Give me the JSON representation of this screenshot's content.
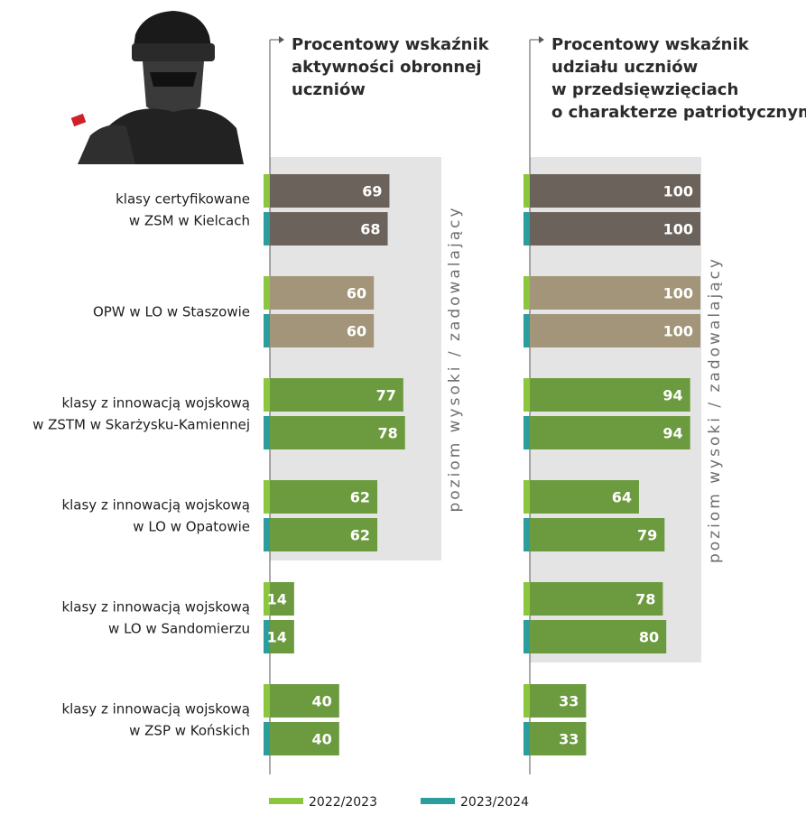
{
  "chart_data": {
    "type": "bar",
    "orientation": "horizontal",
    "categories": [
      "klasy certyfikowane\nw ZSM w Kielcach",
      "OPW w LO w Staszowie",
      "klasy z innowacją wojskową\nw ZSTM w Skarżysku-Kamiennej",
      "klasy z innowacją wojskową\nw LO w Opatowie",
      "klasy z innowacją wojskową\nw LO w Sandomierzu",
      "klasy z innowacją wojskową\nw ZSP w Końskich"
    ],
    "series_names": [
      "2022/2023",
      "2023/2024"
    ],
    "series_colors": [
      "#8cc63f",
      "#2a9d9c"
    ],
    "category_colors": [
      "#6b635b",
      "#a3957a",
      "#6c9a3f",
      "#6c9a3f",
      "#6c9a3f",
      "#6c9a3f"
    ],
    "panels": [
      {
        "title": "Procentowy wskaźnik\naktywności obronnej\nuczniów",
        "xlim": [
          0,
          100
        ],
        "zone_label": "poziom wysoki / zadowalający",
        "zone_categories": 4,
        "values": [
          [
            69,
            68
          ],
          [
            60,
            60
          ],
          [
            77,
            78
          ],
          [
            62,
            62
          ],
          [
            14,
            14
          ],
          [
            40,
            40
          ]
        ]
      },
      {
        "title": "Procentowy wskaźnik\nudziału uczniów\nw przedsięwzięciach\no charakterze patriotycznym",
        "xlim": [
          0,
          100
        ],
        "zone_label": "poziom wysoki / zadowalający",
        "zone_categories": 5,
        "values": [
          [
            100,
            100
          ],
          [
            100,
            100
          ],
          [
            94,
            94
          ],
          [
            64,
            79
          ],
          [
            78,
            80
          ],
          [
            33,
            33
          ]
        ]
      }
    ],
    "legend": {
      "placement": "bottom-center",
      "entries": [
        "2022/2023",
        "2023/2024"
      ]
    }
  },
  "colors": {
    "zone_background": "#e4e4e4",
    "axis": "#555555",
    "label_text": "#1e1e1e"
  },
  "decorations": {
    "icon": "soldier-portrait-icon"
  }
}
